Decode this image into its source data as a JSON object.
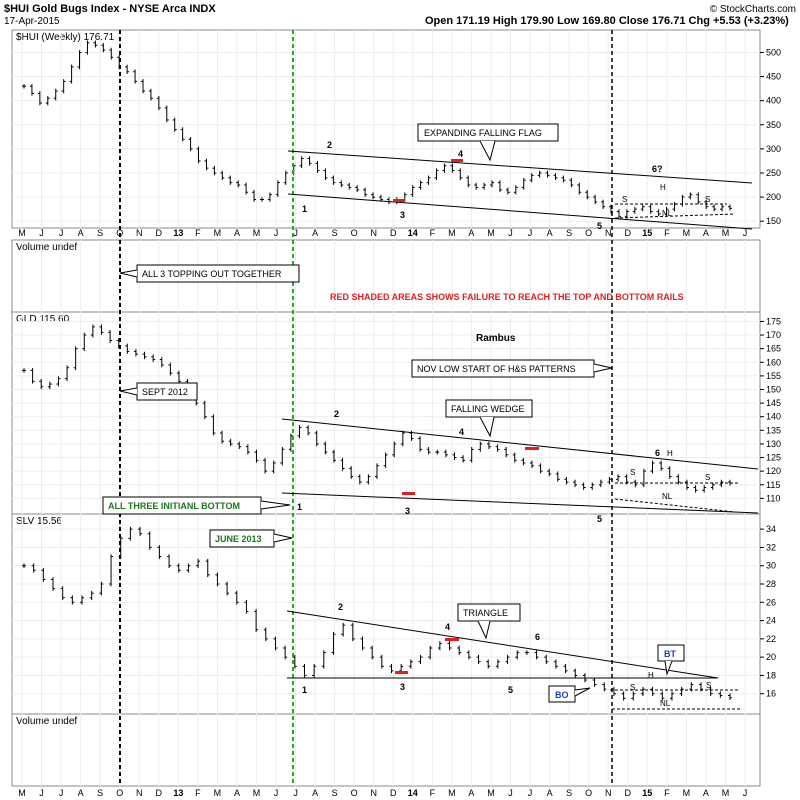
{
  "header": {
    "symbol_title": "$HUI Gold Bugs Index - NYSE Arca INDX",
    "date": "17-Apr-2015",
    "ohlc": "Open 171.19  High 179.90  Low 169.80  Close 176.71  Chg +5.53 (+3.23%)",
    "watermark": "© StockCharts.com"
  },
  "panels": {
    "hui_label": "$HUI (Weekly) 176.71",
    "volume1_label": "Volume undef",
    "gld_label": "GLD 115.60",
    "slv_label": "SLV 15.56",
    "volume2_label": "Volume undef"
  },
  "annotations": {
    "red_note": "RED SHADED AREAS SHOWS FAILURE TO REACH THE TOP AND BOTTOM RAILS",
    "author": "Rambus",
    "expanding_flag": "EXPANDING FALLING FLAG",
    "topping": "ALL 3 TOPPING OUT TOGETHER",
    "nov_low": "NOV LOW START OF H&S  PATTERNS",
    "sept2012": "SEPT 2012",
    "falling_wedge": "FALLING WEDGE",
    "initial_bottom": "ALL THREE INITIANL BOTTOM",
    "june2013": "JUNE 2013",
    "triangle": "TRIANGLE",
    "bt": "BT",
    "bo": "BO",
    "hui_waves": [
      "1",
      "2",
      "3",
      "4",
      "5",
      "6?"
    ],
    "gld_waves": [
      "1",
      "2",
      "3",
      "4",
      "5",
      "6"
    ],
    "slv_waves": [
      "1",
      "2",
      "3",
      "4",
      "5",
      "6"
    ],
    "hs_labels": [
      "S",
      "H",
      "S",
      "NL"
    ]
  },
  "chart_data": {
    "type": "line",
    "x_labels": [
      "M",
      "J",
      "J",
      "A",
      "S",
      "O",
      "N",
      "D",
      "13",
      "F",
      "M",
      "A",
      "M",
      "J",
      "J",
      "A",
      "S",
      "O",
      "N",
      "D",
      "14",
      "F",
      "M",
      "A",
      "M",
      "J",
      "J",
      "A",
      "S",
      "O",
      "N",
      "D",
      "15",
      "F",
      "M",
      "A",
      "M",
      "J"
    ],
    "series": [
      {
        "name": "$HUI",
        "ylim": [
          140,
          530
        ],
        "ticks": [
          150,
          200,
          250,
          300,
          350,
          400,
          450,
          500
        ],
        "values": [
          430,
          415,
          395,
          405,
          420,
          440,
          470,
          500,
          520,
          515,
          505,
          490,
          470,
          460,
          440,
          420,
          405,
          385,
          360,
          340,
          320,
          300,
          275,
          260,
          250,
          240,
          230,
          225,
          210,
          195,
          195,
          205,
          230,
          250,
          265,
          280,
          270,
          255,
          240,
          230,
          225,
          220,
          215,
          205,
          200,
          195,
          190,
          195,
          205,
          220,
          230,
          240,
          255,
          265,
          255,
          240,
          225,
          220,
          225,
          230,
          215,
          210,
          220,
          235,
          245,
          250,
          245,
          240,
          235,
          225,
          210,
          200,
          190,
          180,
          170,
          160,
          170,
          175,
          180,
          170,
          165,
          175,
          185,
          200,
          205,
          190,
          180,
          175,
          180,
          176.71
        ]
      },
      {
        "name": "GLD",
        "ylim": [
          105,
          177
        ],
        "ticks": [
          110,
          115,
          120,
          125,
          130,
          135,
          140,
          145,
          150,
          155,
          160,
          165,
          170,
          175
        ],
        "values": [
          157,
          153,
          151,
          152,
          154,
          158,
          165,
          170,
          173,
          171,
          168,
          166,
          164,
          163,
          162,
          161,
          159,
          156,
          153,
          150,
          145,
          140,
          134,
          131,
          130,
          129,
          127,
          124,
          120,
          123,
          128,
          133,
          136,
          134,
          130,
          127,
          124,
          121,
          118,
          116,
          118,
          122,
          126,
          130,
          134,
          132,
          128,
          127,
          127,
          126,
          125,
          124,
          128,
          130,
          129,
          128,
          126,
          124,
          123,
          122,
          120,
          119,
          117,
          116,
          115,
          114,
          115,
          116,
          117,
          118,
          116,
          115,
          120,
          123,
          121,
          118,
          116,
          114,
          113,
          114,
          115,
          116,
          115.6
        ]
      },
      {
        "name": "SLV",
        "ylim": [
          14,
          35
        ],
        "ticks": [
          16,
          18,
          20,
          22,
          24,
          26,
          28,
          30,
          32,
          34
        ],
        "values": [
          30,
          29.5,
          28.5,
          27.5,
          26.5,
          26,
          26.5,
          27,
          28,
          31,
          33,
          34,
          33.5,
          32,
          31,
          30,
          29.5,
          30,
          30.5,
          29,
          28,
          27,
          26,
          25,
          23,
          22,
          21,
          20,
          19,
          18,
          19,
          20.5,
          22.5,
          23.5,
          22,
          21,
          20,
          19,
          18.5,
          19,
          19.5,
          20,
          21,
          21.5,
          21,
          20.5,
          20,
          19.5,
          19,
          19.5,
          20,
          20.5,
          20.5,
          20,
          19.5,
          19,
          18.5,
          18,
          17.5,
          17,
          16.5,
          16,
          15.5,
          16,
          16.5,
          16,
          15.5,
          16,
          16.5,
          17,
          16.5,
          16,
          15.8,
          15.56
        ]
      }
    ]
  }
}
